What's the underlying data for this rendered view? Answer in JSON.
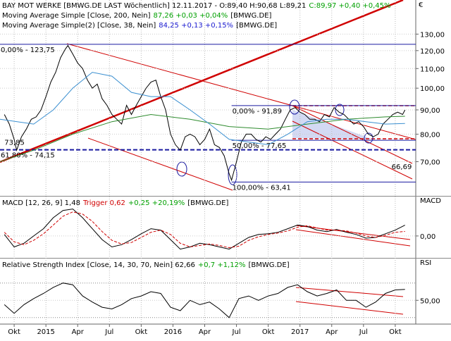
{
  "chart_data": [
    {
      "type": "line",
      "log_scale": true,
      "grid": true,
      "unit": "€",
      "xlim": [
        -5.8,
        164.4
      ],
      "ylim": [
        59.5,
        153.4
      ],
      "yticks": [
        {
          "value": 70,
          "label": "70,00"
        },
        {
          "value": 80,
          "label": "80,00"
        },
        {
          "value": 90,
          "label": "90,00"
        },
        {
          "value": 100,
          "label": "100,00"
        },
        {
          "value": 110,
          "label": "110,00"
        },
        {
          "value": 120,
          "label": "120,00"
        },
        {
          "value": 130,
          "label": "130,00"
        }
      ],
      "series": [
        {
          "name": "BAY MOT WERKE [BMWG.DE LAST Wöchentlich] 12.11.2017 - O:89,40 H:90,68 L:89,21",
          "readout": "C:89,97 +0,40 +0,45%",
          "readout_color": "#00a000",
          "color": "#000000",
          "x": [
            -4,
            -2,
            0,
            1,
            3,
            5,
            7,
            9,
            11,
            13,
            15,
            17,
            19,
            21,
            22,
            24,
            26,
            28,
            30,
            32,
            34,
            36,
            38,
            40,
            42,
            44,
            46,
            48,
            50,
            52,
            54,
            56,
            58,
            60,
            62,
            64,
            66,
            68,
            70,
            72,
            74,
            76,
            78,
            80,
            82,
            84,
            86,
            88,
            89,
            91,
            93,
            95,
            97,
            99,
            101,
            103,
            105,
            107,
            109,
            111,
            113,
            115,
            117,
            119,
            121,
            123,
            125,
            127,
            129,
            131,
            133,
            135,
            137,
            139,
            141,
            143,
            145,
            147,
            149,
            151,
            153,
            155,
            157,
            159,
            160
          ],
          "values": [
            88,
            84,
            78,
            74,
            79,
            82,
            86,
            87,
            90,
            96,
            103,
            108,
            116,
            121,
            123,
            118,
            113,
            110,
            104,
            100,
            102,
            95,
            92,
            88,
            86,
            84,
            92,
            88,
            92,
            96,
            100,
            103,
            104,
            96,
            90,
            80,
            76,
            74,
            79,
            80,
            79,
            76,
            78,
            82,
            76,
            75,
            72,
            66,
            64,
            70,
            77,
            80,
            80,
            78,
            77,
            79,
            78,
            80,
            82,
            86,
            90,
            91,
            89,
            88,
            86,
            86,
            85,
            88,
            87,
            91,
            89,
            88,
            86,
            84,
            85,
            83,
            80,
            79,
            80,
            84,
            86,
            88,
            89,
            88,
            89.97
          ]
        },
        {
          "name": "Moving Average Simple [Close, 200, Nein]",
          "readout": "87,26 +0,03 +0,04%",
          "readout_color": "#00a000",
          "suffix": "[BMWG.DE]",
          "color": "#2e8b2e",
          "x": [
            -5.8,
            8,
            24,
            40,
            56,
            72,
            88,
            104,
            120,
            136,
            152,
            160
          ],
          "values": [
            70,
            74,
            80,
            85,
            88,
            86,
            83,
            82,
            84,
            86,
            87,
            87.26
          ]
        },
        {
          "name": "Moving Average Simple(2) [Close, 38, Nein]",
          "readout": "84,25 +0,13 +0,15%",
          "readout_color": "#1a1ad0",
          "suffix": "[BMWG.DE]",
          "color": "#3a8fd0",
          "x": [
            -5.8,
            8,
            16,
            24,
            32,
            40,
            48,
            56,
            64,
            72,
            80,
            88,
            96,
            104,
            112,
            120,
            128,
            136,
            144,
            152,
            160
          ],
          "values": [
            86,
            84,
            90,
            100,
            108,
            106,
            98,
            96,
            96,
            90,
            84,
            78,
            77,
            76,
            80,
            85,
            86,
            86,
            85,
            84,
            84.25
          ]
        }
      ],
      "levels": [
        {
          "label": "0,00% - 123,75",
          "value": 123.75,
          "start": -5.8,
          "color": "#1a1aa0",
          "dash": false
        },
        {
          "label": "61,80% - 74,15",
          "value": 74.15,
          "start": -5.8,
          "color": "#1a1aa0",
          "dash": true
        },
        {
          "label": "0,00% - 91,89",
          "value": 91.89,
          "start": 89,
          "color": "#1a1aa0",
          "dash": false
        },
        {
          "label": "50,00% - 77,65",
          "value": 77.65,
          "start": 89,
          "color": "#1a1aa0",
          "dash": false
        },
        {
          "label": "100,00% - 63,41",
          "value": 63.41,
          "start": 89,
          "color": "#1a1aa0",
          "dash": false
        }
      ],
      "annotations": [
        {
          "text": "73,85",
          "x": -4,
          "y": 76,
          "color": "#1a1aa0"
        },
        {
          "text": "66,69",
          "x": 154.5,
          "y": 67.5,
          "color": "#c00000"
        }
      ],
      "xticks": [
        {
          "value": 0,
          "label": "Okt"
        },
        {
          "value": 13,
          "label": "2015"
        },
        {
          "value": 26,
          "label": "Apr"
        },
        {
          "value": 39,
          "label": "Jul"
        },
        {
          "value": 52,
          "label": "Okt"
        },
        {
          "value": 65,
          "label": "2016"
        },
        {
          "value": 78,
          "label": "Apr"
        },
        {
          "value": 91,
          "label": "Jul"
        },
        {
          "value": 104,
          "label": "Okt"
        },
        {
          "value": 117,
          "label": "2017"
        },
        {
          "value": 130,
          "label": "Apr"
        },
        {
          "value": 143,
          "label": "Jul"
        },
        {
          "value": 156,
          "label": "Okt"
        }
      ]
    },
    {
      "type": "line",
      "title": "MACD",
      "xlim": [
        -5.8,
        164.4
      ],
      "ylim": [
        -3,
        5.3
      ],
      "yticks": [
        {
          "value": 0,
          "label": "0,00"
        }
      ],
      "grid": true,
      "series": [
        {
          "name": "MACD [12, 26, 9] 1,48",
          "color": "#000000",
          "x": [
            -4,
            0,
            4,
            8,
            12,
            16,
            20,
            24,
            28,
            32,
            36,
            40,
            44,
            48,
            52,
            56,
            60,
            64,
            68,
            72,
            76,
            80,
            84,
            88,
            92,
            96,
            100,
            104,
            108,
            112,
            116,
            120,
            124,
            128,
            132,
            136,
            140,
            144,
            148,
            152,
            156,
            160
          ],
          "values": [
            0.2,
            -1.5,
            -1.0,
            0,
            1.0,
            2.5,
            3.5,
            3.7,
            2.5,
            1.0,
            -0.5,
            -1.5,
            -1.2,
            -0.5,
            0.3,
            1.0,
            0.8,
            -0.5,
            -1.8,
            -1.5,
            -1.0,
            -1.2,
            -1.5,
            -1.8,
            -1.0,
            -0.2,
            0.2,
            0.3,
            0.5,
            1.0,
            1.5,
            1.3,
            0.8,
            0.6,
            0.9,
            0.5,
            0.2,
            -0.3,
            -0.2,
            0.3,
            0.8,
            1.48
          ]
        },
        {
          "name": "Trigger 0,62",
          "readout": "+0,25 +20,19%",
          "readout_color": "#00a000",
          "suffix": "[BMWG.DE]",
          "color": "#d00000",
          "dash": true,
          "x": [
            -4,
            0,
            4,
            8,
            12,
            16,
            20,
            24,
            28,
            32,
            36,
            40,
            44,
            48,
            52,
            56,
            60,
            64,
            68,
            72,
            76,
            80,
            84,
            88,
            92,
            96,
            100,
            104,
            108,
            112,
            116,
            120,
            124,
            128,
            132,
            136,
            140,
            144,
            148,
            152,
            156,
            160
          ],
          "values": [
            0.5,
            -0.8,
            -1.2,
            -0.6,
            0.3,
            1.5,
            2.7,
            3.3,
            3.0,
            2.0,
            0.6,
            -0.6,
            -1.1,
            -0.9,
            -0.2,
            0.5,
            0.8,
            0.2,
            -1.0,
            -1.5,
            -1.3,
            -1.1,
            -1.3,
            -1.6,
            -1.4,
            -0.6,
            -0.1,
            0.2,
            0.4,
            0.7,
            1.2,
            1.4,
            1.1,
            0.8,
            0.8,
            0.7,
            0.4,
            0.0,
            -0.2,
            0.1,
            0.5,
            0.62
          ]
        }
      ]
    },
    {
      "type": "line",
      "title": "RSI",
      "xlim": [
        -5.8,
        164.4
      ],
      "ylim": [
        22.5,
        97.5
      ],
      "yticks": [
        {
          "value": 50,
          "label": "50,00"
        }
      ],
      "levels": [
        30,
        70
      ],
      "grid": true,
      "series": [
        {
          "name": "Relative Strength Index [Close, 14, 30, 70, Nein] 62,66",
          "readout": "+0,7 +1,12%",
          "readout_color": "#00a000",
          "suffix": "[BMWG.DE]",
          "color": "#000000",
          "x": [
            -4,
            0,
            4,
            8,
            12,
            16,
            20,
            24,
            28,
            32,
            36,
            40,
            44,
            48,
            52,
            56,
            60,
            64,
            68,
            72,
            76,
            80,
            84,
            88,
            92,
            96,
            100,
            104,
            108,
            112,
            116,
            120,
            124,
            128,
            132,
            136,
            140,
            144,
            148,
            152,
            156,
            160
          ],
          "values": [
            45,
            35,
            45,
            52,
            58,
            65,
            70,
            68,
            55,
            48,
            42,
            40,
            45,
            52,
            55,
            60,
            58,
            42,
            38,
            50,
            45,
            48,
            40,
            30,
            52,
            55,
            50,
            55,
            58,
            65,
            68,
            60,
            55,
            58,
            62,
            50,
            50,
            42,
            48,
            58,
            62,
            62.66
          ]
        }
      ]
    }
  ]
}
